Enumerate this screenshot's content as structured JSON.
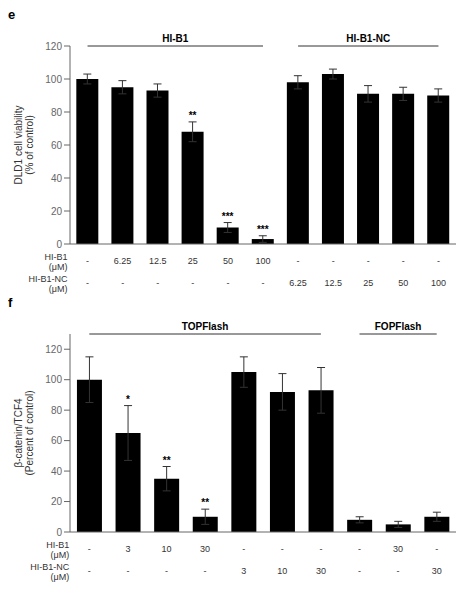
{
  "chart_data": [
    {
      "type": "bar",
      "title": "e",
      "ylabel": "DLD1 cell viability\n(% of control)",
      "ylim": [
        0,
        120
      ],
      "yticks": [
        0,
        20,
        40,
        60,
        80,
        100,
        120
      ],
      "color": "#000000",
      "grid": false,
      "row_labels": [
        "HI-B1\n(μM)",
        "HI-B1-NC\n(μM)"
      ],
      "groups": [
        {
          "title": "HI-B1",
          "rows": [
            [
              "-",
              "6.25",
              "12.5",
              "25",
              "50",
              "100"
            ],
            [
              "-",
              "-",
              "-",
              "-",
              "-",
              "-"
            ]
          ],
          "values": [
            100,
            95,
            93,
            68,
            10,
            3
          ],
          "errors": [
            3,
            4,
            4,
            6,
            3,
            2
          ],
          "annotations": [
            null,
            null,
            null,
            "**",
            "***",
            "***"
          ]
        },
        {
          "title": "HI-B1-NC",
          "rows": [
            [
              "-",
              "-",
              "-",
              "-",
              "-"
            ],
            [
              "6.25",
              "12.5",
              "25",
              "50",
              "100"
            ]
          ],
          "values": [
            98,
            103,
            91,
            91,
            90
          ],
          "errors": [
            4,
            3,
            5,
            4,
            4
          ],
          "annotations": [
            null,
            null,
            null,
            null,
            null
          ]
        }
      ]
    },
    {
      "type": "bar",
      "title": "f",
      "ylabel": "β-catenin/TCF4\n(Percent of control)",
      "ylim": [
        0,
        130
      ],
      "yticks": [
        0,
        20,
        40,
        60,
        80,
        100,
        120
      ],
      "color": "#000000",
      "grid": false,
      "row_labels": [
        "HI-B1\n(μM)",
        "HI-B1-NC\n(μM)"
      ],
      "groups": [
        {
          "title": "TOPFlash",
          "rows": [
            [
              "-",
              "3",
              "10",
              "30",
              "-",
              "-",
              "-"
            ],
            [
              "-",
              "-",
              "-",
              "-",
              "3",
              "10",
              "30"
            ]
          ],
          "values": [
            100,
            65,
            35,
            10,
            105,
            92,
            93
          ],
          "errors": [
            15,
            18,
            8,
            5,
            10,
            12,
            15
          ],
          "annotations": [
            null,
            "*",
            "**",
            "**",
            null,
            null,
            null
          ]
        },
        {
          "title": "FOPFlash",
          "rows": [
            [
              "-",
              "30",
              "-"
            ],
            [
              "-",
              "-",
              "30"
            ]
          ],
          "values": [
            8,
            5,
            10
          ],
          "errors": [
            2,
            2,
            3
          ],
          "annotations": [
            null,
            null,
            null
          ]
        }
      ]
    }
  ]
}
